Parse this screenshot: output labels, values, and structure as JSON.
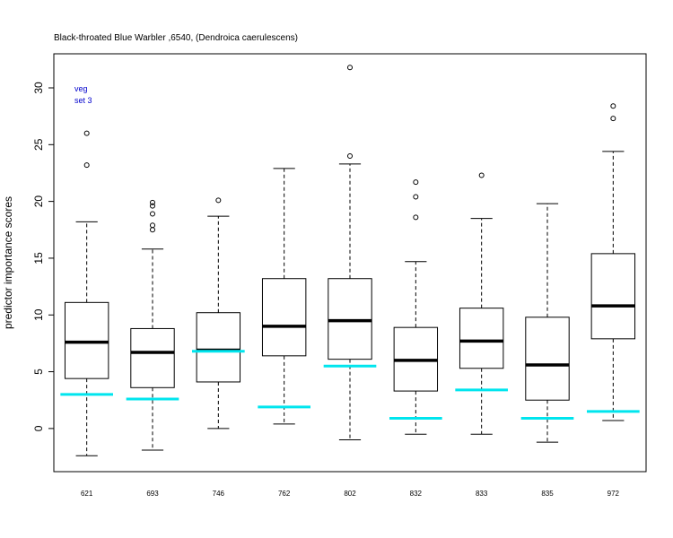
{
  "chart_data": {
    "type": "boxplot",
    "title": "Black-throated Blue Warbler ,6540, (Dendroica caerulescens)",
    "ylabel": "predictor importance scores",
    "xlabel": "",
    "ylim": [
      -3.8,
      33.0
    ],
    "yticks": [
      0,
      5,
      10,
      15,
      20,
      25,
      30
    ],
    "grid": false,
    "annotations": [
      "veg",
      "set 3"
    ],
    "annotation_color": "#0000cc",
    "box_color": "#000000",
    "reference_color": "#00e5ee",
    "categories": [
      "621",
      "693",
      "746",
      "762",
      "802",
      "832",
      "833",
      "835",
      "972"
    ],
    "boxes": [
      {
        "label": "621",
        "whisker_low": -2.4,
        "q1": 4.4,
        "median": 7.6,
        "q3": 11.1,
        "whisker_high": 18.2,
        "outliers": [
          23.2,
          26.0
        ],
        "reference": 3.0
      },
      {
        "label": "693",
        "whisker_low": -1.9,
        "q1": 3.6,
        "median": 6.7,
        "q3": 8.8,
        "whisker_high": 15.8,
        "outliers": [
          17.5,
          17.9,
          18.9,
          19.6,
          19.9
        ],
        "reference": 2.6
      },
      {
        "label": "746",
        "whisker_low": 0.0,
        "q1": 4.1,
        "median": 6.9,
        "q3": 10.2,
        "whisker_high": 18.7,
        "outliers": [
          20.1
        ],
        "reference": 6.8
      },
      {
        "label": "762",
        "whisker_low": 0.4,
        "q1": 6.4,
        "median": 9.0,
        "q3": 13.2,
        "whisker_high": 22.9,
        "outliers": [],
        "reference": 1.9
      },
      {
        "label": "802",
        "whisker_low": -1.0,
        "q1": 6.1,
        "median": 9.5,
        "q3": 13.2,
        "whisker_high": 23.3,
        "outliers": [
          24.0,
          31.8
        ],
        "reference": 5.5
      },
      {
        "label": "832",
        "whisker_low": -0.5,
        "q1": 3.3,
        "median": 6.0,
        "q3": 8.9,
        "whisker_high": 14.7,
        "outliers": [
          18.6,
          20.4,
          21.7
        ],
        "reference": 0.9
      },
      {
        "label": "833",
        "whisker_low": -0.5,
        "q1": 5.3,
        "median": 7.7,
        "q3": 10.6,
        "whisker_high": 18.5,
        "outliers": [
          22.3
        ],
        "reference": 3.4
      },
      {
        "label": "835",
        "whisker_low": -1.2,
        "q1": 2.5,
        "median": 5.6,
        "q3": 9.8,
        "whisker_high": 19.8,
        "outliers": [],
        "reference": 0.9
      },
      {
        "label": "972",
        "whisker_low": 0.7,
        "q1": 7.9,
        "median": 10.8,
        "q3": 15.4,
        "whisker_high": 24.4,
        "outliers": [
          27.3,
          28.4
        ],
        "reference": 1.5
      }
    ]
  }
}
